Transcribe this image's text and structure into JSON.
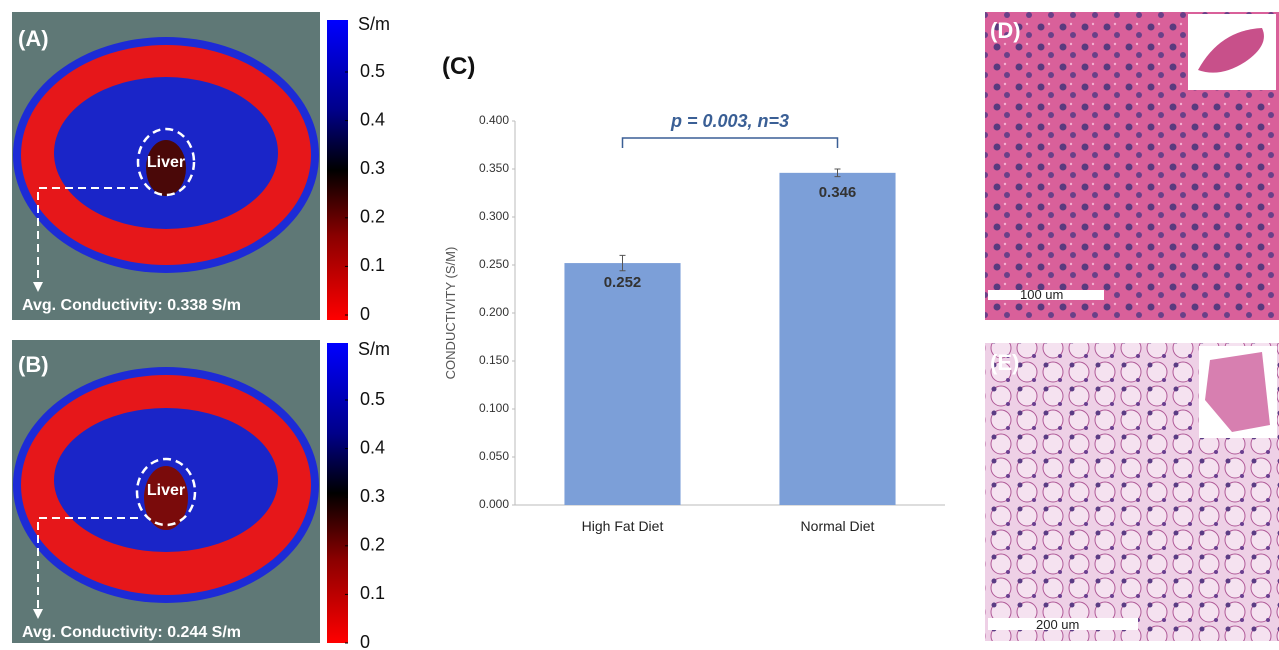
{
  "chart_data": {
    "type": "bar",
    "title": "(C)",
    "y_label": "CONDUCTIVITY (S/M)",
    "categories": [
      "High Fat Diet",
      "Normal Diet"
    ],
    "values": [
      0.252,
      0.346
    ],
    "errors": [
      0.008,
      0.004
    ],
    "value_labels": [
      "0.252",
      "0.346"
    ],
    "color": "#7c9fd8",
    "ylim": [
      0,
      0.4
    ],
    "yticks": [
      {
        "value": 0,
        "label": "0.000"
      },
      {
        "value": 0.05,
        "label": "0.050"
      },
      {
        "value": 0.1,
        "label": "0.100"
      },
      {
        "value": 0.15,
        "label": "0.150"
      },
      {
        "value": 0.2,
        "label": "0.200"
      },
      {
        "value": 0.25,
        "label": "0.250"
      },
      {
        "value": 0.3,
        "label": "0.300"
      },
      {
        "value": 0.35,
        "label": "0.350"
      },
      {
        "value": 0.4,
        "label": "0.400"
      }
    ],
    "annotation": "p = 0.003, n=3"
  },
  "panels": {
    "a": {
      "label": "(A)",
      "organ": "Liver",
      "caption": "Avg. Conductivity: 0.338 S/m",
      "unit": "S/m",
      "colorbar_ticks": [
        0.5,
        0.4,
        0.3,
        0.2,
        0.1,
        0
      ]
    },
    "b": {
      "label": "(B)",
      "organ": "Liver",
      "caption": "Avg. Conductivity: 0.244 S/m",
      "unit": "S/m",
      "colorbar_ticks": [
        0.5,
        0.4,
        0.3,
        0.2,
        0.1,
        0
      ]
    },
    "d": {
      "label": "(D)",
      "scale": "100 um"
    },
    "e": {
      "label": "(E)",
      "scale": "200 um"
    }
  }
}
